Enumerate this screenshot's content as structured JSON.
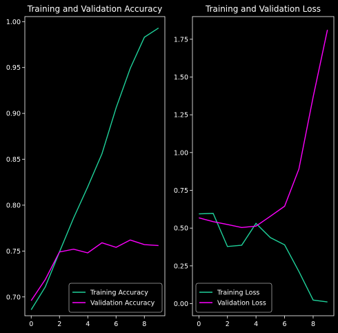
{
  "chart_data": [
    {
      "type": "line",
      "title": "Training and Validation Accuracy",
      "xlabel": "",
      "ylabel": "",
      "xlim": [
        -0.45,
        9.45
      ],
      "ylim": [
        0.6795,
        1.0055
      ],
      "xticks": [
        0,
        2,
        4,
        6,
        8
      ],
      "yticks": [
        0.7,
        0.75,
        0.8,
        0.85,
        0.9,
        0.95,
        1.0
      ],
      "ytick_labels": [
        "0.70",
        "0.75",
        "0.80",
        "0.85",
        "0.90",
        "0.95",
        "1.00"
      ],
      "grid": false,
      "legend_position": "lower right",
      "x": [
        0,
        1,
        2,
        3,
        4,
        5,
        6,
        7,
        8,
        9
      ],
      "series": [
        {
          "name": "Training Accuracy",
          "color": "#1fd19a",
          "values": [
            0.686,
            0.711,
            0.749,
            0.786,
            0.82,
            0.856,
            0.906,
            0.949,
            0.983,
            0.993
          ]
        },
        {
          "name": "Validation Accuracy",
          "color": "#ff00ff",
          "values": [
            0.696,
            0.719,
            0.749,
            0.752,
            0.748,
            0.759,
            0.754,
            0.762,
            0.757,
            0.756
          ]
        }
      ]
    },
    {
      "type": "line",
      "title": "Training and Validation Loss",
      "xlabel": "",
      "ylabel": "",
      "xlim": [
        -0.45,
        9.45
      ],
      "ylim": [
        -0.08,
        1.9
      ],
      "xticks": [
        0,
        2,
        4,
        6,
        8
      ],
      "yticks": [
        0.0,
        0.25,
        0.5,
        0.75,
        1.0,
        1.25,
        1.5,
        1.75
      ],
      "ytick_labels": [
        "0.00",
        "0.25",
        "0.50",
        "0.75",
        "1.00",
        "1.25",
        "1.50",
        "1.75"
      ],
      "grid": false,
      "legend_position": "lower left",
      "x": [
        0,
        1,
        2,
        3,
        4,
        5,
        6,
        7,
        8,
        9
      ],
      "series": [
        {
          "name": "Training Loss",
          "color": "#1fd19a",
          "values": [
            0.594,
            0.597,
            0.378,
            0.387,
            0.531,
            0.437,
            0.389,
            0.213,
            0.024,
            0.011
          ]
        },
        {
          "name": "Validation Loss",
          "color": "#ff00ff",
          "values": [
            0.568,
            0.543,
            0.524,
            0.504,
            0.513,
            0.578,
            0.645,
            0.891,
            1.368,
            1.812
          ]
        }
      ]
    }
  ]
}
